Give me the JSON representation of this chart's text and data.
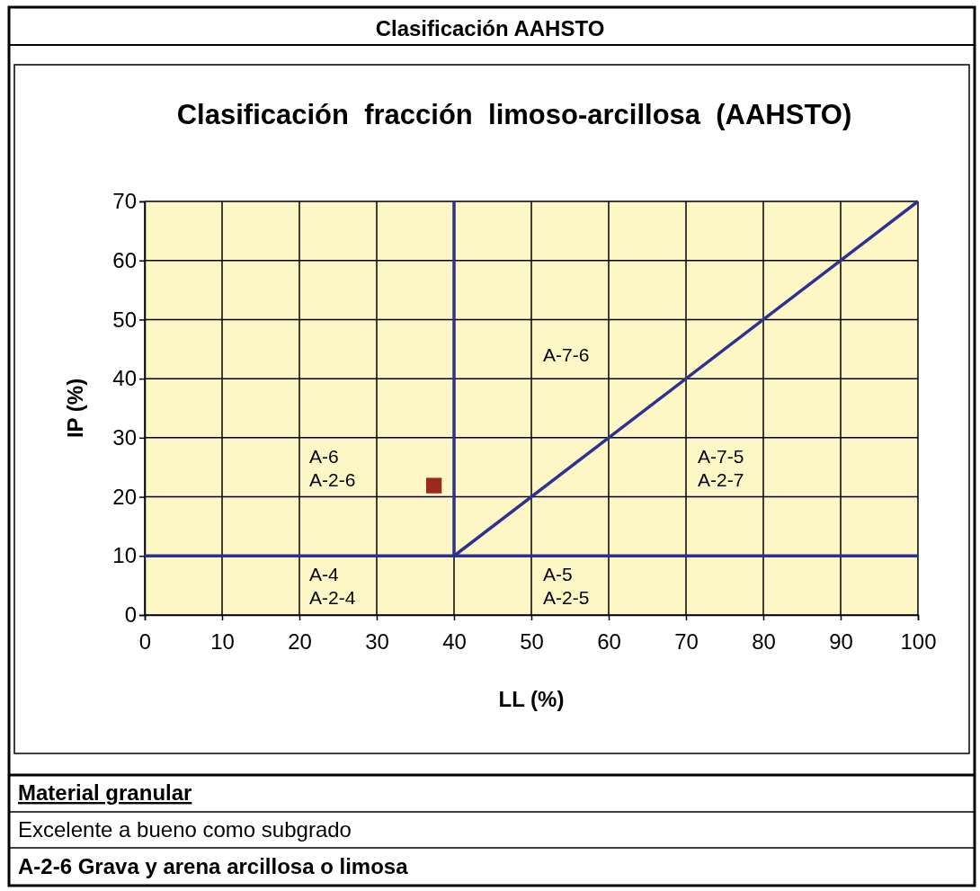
{
  "chart_data": {
    "type": "scatter",
    "title": "Clasificación AAHSTO",
    "subtitle": "Clasificación  fracción  limoso-arcillosa  (AAHSTO)",
    "xlabel": "LL (%)",
    "ylabel": "IP (%)",
    "xlim": [
      0,
      100
    ],
    "xticks": [
      0,
      10,
      20,
      30,
      40,
      50,
      60,
      70,
      80,
      90,
      100
    ],
    "ylim": [
      0,
      70
    ],
    "yticks": [
      0,
      10,
      20,
      30,
      40,
      50,
      60,
      70
    ],
    "grid": true,
    "series": [
      {
        "type": "line",
        "color": "#2e3192",
        "x": [
          0,
          100
        ],
        "values": [
          10,
          10
        ],
        "marker": "none",
        "line_style": "solid"
      },
      {
        "type": "line",
        "color": "#2e3192",
        "x": [
          40,
          40
        ],
        "values": [
          10,
          70
        ],
        "marker": "none",
        "line_style": "solid"
      },
      {
        "type": "line",
        "color": "#2e3192",
        "x": [
          40,
          100
        ],
        "values": [
          10,
          70
        ],
        "marker": "none",
        "line_style": "solid"
      },
      {
        "color": "#9c2a1c",
        "x": [
          37.4
        ],
        "values": [
          21.9
        ],
        "marker": "square"
      }
    ],
    "annotations": [
      "A-7-6",
      "A-6\nA-2-6",
      "A-7-5\nA-2-7",
      "A-4\nA-2-4",
      "A-5\nA-2-5",
      "Material granular",
      "Excelente a bueno como subgrado",
      "A-2-6 Grava y arena arcillosa o limosa"
    ]
  }
}
